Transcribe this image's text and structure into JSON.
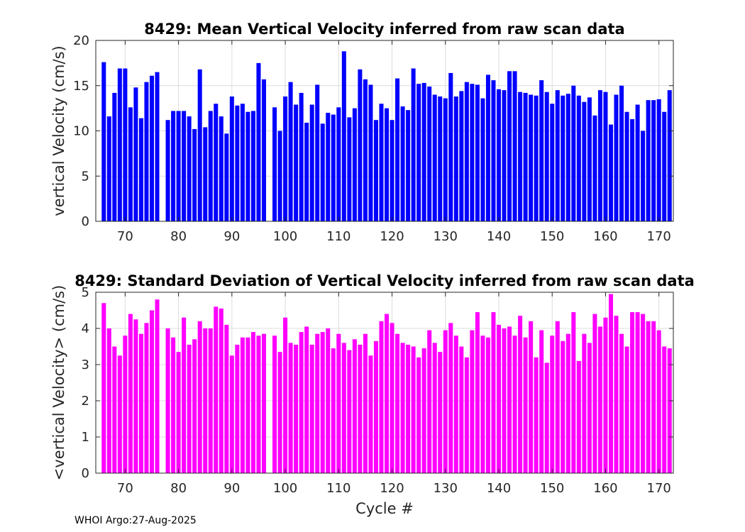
{
  "chart_data": [
    {
      "type": "bar",
      "title": "8429: Mean Vertical Velocity inferred from raw scan data",
      "xlabel": "",
      "ylabel": "vertical Velocity (cm/s)",
      "xlim": [
        64.5,
        172.7
      ],
      "ylim": [
        0,
        20
      ],
      "x_ticks": [
        70,
        80,
        90,
        100,
        110,
        120,
        130,
        140,
        150,
        160,
        170
      ],
      "y_ticks": [
        0,
        5,
        10,
        15,
        20
      ],
      "grid": true,
      "color": "#0000ff",
      "x": [
        66,
        67,
        68,
        69,
        70,
        71,
        72,
        73,
        74,
        75,
        76,
        78,
        79,
        80,
        81,
        82,
        83,
        84,
        85,
        86,
        87,
        88,
        89,
        90,
        91,
        92,
        93,
        94,
        95,
        96,
        98,
        99,
        100,
        101,
        102,
        103,
        104,
        105,
        106,
        107,
        108,
        109,
        110,
        111,
        112,
        113,
        114,
        115,
        116,
        117,
        118,
        119,
        120,
        121,
        122,
        123,
        124,
        125,
        126,
        127,
        128,
        129,
        130,
        131,
        132,
        133,
        134,
        135,
        136,
        137,
        138,
        139,
        140,
        141,
        142,
        143,
        144,
        145,
        146,
        147,
        148,
        149,
        150,
        151,
        152,
        153,
        154,
        155,
        156,
        157,
        158,
        159,
        160,
        161,
        162,
        163,
        164,
        165,
        166,
        167,
        168,
        169,
        170,
        171,
        172
      ],
      "values": [
        17.6,
        11.6,
        14.2,
        16.9,
        16.9,
        12.6,
        14.8,
        11.4,
        15.4,
        16.1,
        16.5,
        11.2,
        12.2,
        12.2,
        12.2,
        11.6,
        10.2,
        16.8,
        10.4,
        12.2,
        13.0,
        11.6,
        9.7,
        13.8,
        12.8,
        13.0,
        12.1,
        12.2,
        17.5,
        15.7,
        12.6,
        10.0,
        13.8,
        15.4,
        12.9,
        14.2,
        10.9,
        12.9,
        15.1,
        10.8,
        12.0,
        11.8,
        12.6,
        18.8,
        11.5,
        12.5,
        16.8,
        15.7,
        15.1,
        11.2,
        13.0,
        12.5,
        11.2,
        15.8,
        12.7,
        12.3,
        16.9,
        15.2,
        15.3,
        14.9,
        14.0,
        13.8,
        13.6,
        16.4,
        13.8,
        14.4,
        15.4,
        15.2,
        15.1,
        13.6,
        16.2,
        15.6,
        14.6,
        14.5,
        16.6,
        16.6,
        14.3,
        14.2,
        14.0,
        13.9,
        15.6,
        14.3,
        13.0,
        14.5,
        13.9,
        14.1,
        15.0,
        13.9,
        13.2,
        13.7,
        11.7,
        14.5,
        14.3,
        10.7,
        14.0,
        15.0,
        12.1,
        11.3,
        12.9,
        10.0,
        13.4,
        13.4,
        13.5,
        12.1,
        14.5
      ]
    },
    {
      "type": "bar",
      "title": "8429: Standard Deviation of Vertical Velocity inferred from raw scan data",
      "xlabel": "Cycle #",
      "ylabel": "<vertical Velocity> (cm/s)",
      "xlim": [
        64.5,
        172.7
      ],
      "ylim": [
        0,
        5
      ],
      "x_ticks": [
        70,
        80,
        90,
        100,
        110,
        120,
        130,
        140,
        150,
        160,
        170
      ],
      "y_ticks": [
        0,
        1,
        2,
        3,
        4,
        5
      ],
      "grid": true,
      "color": "#ff00ff",
      "x": [
        66,
        67,
        68,
        69,
        70,
        71,
        72,
        73,
        74,
        75,
        76,
        78,
        79,
        80,
        81,
        82,
        83,
        84,
        85,
        86,
        87,
        88,
        89,
        90,
        91,
        92,
        93,
        94,
        95,
        96,
        98,
        99,
        100,
        101,
        102,
        103,
        104,
        105,
        106,
        107,
        108,
        109,
        110,
        111,
        112,
        113,
        114,
        115,
        116,
        117,
        118,
        119,
        120,
        121,
        122,
        123,
        124,
        125,
        126,
        127,
        128,
        129,
        130,
        131,
        132,
        133,
        134,
        135,
        136,
        137,
        138,
        139,
        140,
        141,
        142,
        143,
        144,
        145,
        146,
        147,
        148,
        149,
        150,
        151,
        152,
        153,
        154,
        155,
        156,
        157,
        158,
        159,
        160,
        161,
        162,
        163,
        164,
        165,
        166,
        167,
        168,
        169,
        170,
        171,
        172
      ],
      "values": [
        4.7,
        4.0,
        3.5,
        3.25,
        3.8,
        4.4,
        4.25,
        3.85,
        4.15,
        4.5,
        4.8,
        4.0,
        3.75,
        3.35,
        4.3,
        3.55,
        3.7,
        4.2,
        4.0,
        4.0,
        4.6,
        4.55,
        4.1,
        3.25,
        3.55,
        3.75,
        3.75,
        3.9,
        3.8,
        3.85,
        3.8,
        3.35,
        4.3,
        3.6,
        3.55,
        3.9,
        4.05,
        3.55,
        3.85,
        3.9,
        4.0,
        3.45,
        3.85,
        3.6,
        3.4,
        3.7,
        3.55,
        3.85,
        3.25,
        3.65,
        4.2,
        4.4,
        4.15,
        3.85,
        3.6,
        3.55,
        3.5,
        3.2,
        3.45,
        3.95,
        3.6,
        3.35,
        3.95,
        4.15,
        3.8,
        3.5,
        3.2,
        3.95,
        4.45,
        3.8,
        3.75,
        4.45,
        4.1,
        4.0,
        4.05,
        3.8,
        4.35,
        3.75,
        4.2,
        3.2,
        3.95,
        3.05,
        3.8,
        4.2,
        3.65,
        3.85,
        4.45,
        3.1,
        3.85,
        3.6,
        4.4,
        4.05,
        4.3,
        4.95,
        4.35,
        3.85,
        3.5,
        4.45,
        4.45,
        4.4,
        4.2,
        4.2,
        3.95,
        3.5,
        3.45
      ]
    }
  ],
  "footer": "WHOI Argo:27-Aug-2025"
}
